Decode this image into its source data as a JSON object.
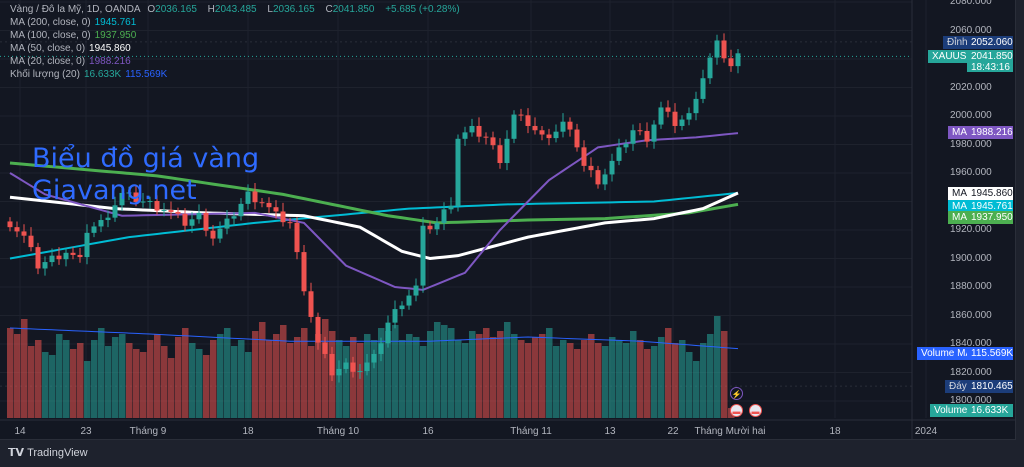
{
  "legend": {
    "symbol": "Vàng / Đô la Mỹ, 1D, OANDA",
    "o_label": "O",
    "o": "2036.165",
    "h_label": "H",
    "h": "2043.485",
    "l_label": "L",
    "l": "2036.165",
    "c_label": "C",
    "c": "2041.850",
    "change": "+5.685 (+0.28%)",
    "ma200_label": "MA (200, close, 0)",
    "ma200": "1945.761",
    "ma100_label": "MA (100, close, 0)",
    "ma100": "1937.950",
    "ma50_label": "MA (50, close, 0)",
    "ma50": "1945.860",
    "ma20_label": "MA (20, close, 0)",
    "ma20": "1988.216",
    "vol_label": "Khối lượng (20)",
    "vol": "16.633K",
    "vol_ma": "115.569K"
  },
  "watermark": [
    "Biểu đồ giá vàng",
    "Giavang.net"
  ],
  "price_scale": [
    "2080.000",
    "2060.000",
    "2020.000",
    "2000.000",
    "1980.000",
    "1960.000",
    "1920.000",
    "1900.000",
    "1880.000",
    "1860.000",
    "1840.000",
    "1820.000",
    "1800.000"
  ],
  "tags": {
    "high_label": "Đỉnh",
    "high": "2052.060",
    "symbol": "XAUUSD",
    "last": "2041.850",
    "countdown": "18:43:16",
    "ma_label": "MA",
    "ma20": "1988.216",
    "ma50": "1945.860",
    "ma200": "1945.761",
    "ma100": "1937.950",
    "volma_label": "Volume MA",
    "volma": "115.569K",
    "low_label": "Đáy",
    "low": "1810.465",
    "vol_label": "Volume",
    "vol": "16.633K"
  },
  "time_axis": [
    "14",
    "23",
    "Tháng 9",
    "18",
    "Tháng 10",
    "16",
    "Tháng 11",
    "13",
    "22",
    "Tháng Mười hai",
    "18",
    "2024"
  ],
  "footer": "TradingView",
  "colors": {
    "up": "#26a69a",
    "down": "#ef5350",
    "ma20": "#7e57c2",
    "ma50": "#ffffff",
    "ma100": "#4caf50",
    "ma200": "#00bcd4",
    "volma": "#2962ff"
  },
  "chart_data": {
    "type": "candlestick",
    "ylim": [
      1795,
      2082
    ],
    "close_path": [
      [
        0,
        1925
      ],
      [
        2,
        1915
      ],
      [
        4,
        1895
      ],
      [
        6,
        1900
      ],
      [
        8,
        1905
      ],
      [
        10,
        1898
      ],
      [
        11,
        1920
      ],
      [
        13,
        1925
      ],
      [
        16,
        1945
      ],
      [
        19,
        1940
      ],
      [
        22,
        1935
      ],
      [
        25,
        1925
      ],
      [
        27,
        1930
      ],
      [
        29,
        1915
      ],
      [
        31,
        1925
      ],
      [
        34,
        1945
      ],
      [
        36,
        1940
      ],
      [
        38,
        1930
      ],
      [
        40,
        1925
      ],
      [
        42,
        1880
      ],
      [
        44,
        1840
      ],
      [
        46,
        1820
      ],
      [
        48,
        1825
      ],
      [
        50,
        1822
      ],
      [
        52,
        1830
      ],
      [
        54,
        1855
      ],
      [
        56,
        1870
      ],
      [
        58,
        1880
      ],
      [
        59,
        1920
      ],
      [
        61,
        1925
      ],
      [
        63,
        1940
      ],
      [
        64,
        1985
      ],
      [
        66,
        1990
      ],
      [
        68,
        1985
      ],
      [
        70,
        1970
      ],
      [
        72,
        2000
      ],
      [
        74,
        1995
      ],
      [
        76,
        1985
      ],
      [
        78,
        1990
      ],
      [
        79,
        1995
      ],
      [
        81,
        1980
      ],
      [
        82,
        1965
      ],
      [
        84,
        1955
      ],
      [
        85,
        1960
      ],
      [
        87,
        1975
      ],
      [
        89,
        1990
      ],
      [
        91,
        1985
      ],
      [
        93,
        2005
      ],
      [
        95,
        1995
      ],
      [
        97,
        2000
      ],
      [
        98,
        2015
      ],
      [
        100,
        2040
      ],
      [
        101,
        2050
      ],
      [
        103,
        2035
      ],
      [
        104,
        2042
      ]
    ],
    "ma20": [
      [
        0,
        1960
      ],
      [
        5,
        1945
      ],
      [
        16,
        1930
      ],
      [
        35,
        1932
      ],
      [
        42,
        1925
      ],
      [
        48,
        1895
      ],
      [
        55,
        1880
      ],
      [
        59,
        1878
      ],
      [
        65,
        1890
      ],
      [
        70,
        1920
      ],
      [
        77,
        1955
      ],
      [
        84,
        1978
      ],
      [
        91,
        1983
      ],
      [
        98,
        1985
      ],
      [
        104,
        1988
      ]
    ],
    "ma50": [
      [
        0,
        1943
      ],
      [
        15,
        1935
      ],
      [
        28,
        1932
      ],
      [
        42,
        1930
      ],
      [
        50,
        1922
      ],
      [
        56,
        1905
      ],
      [
        60,
        1900
      ],
      [
        64,
        1902
      ],
      [
        74,
        1915
      ],
      [
        85,
        1925
      ],
      [
        92,
        1928
      ],
      [
        99,
        1935
      ],
      [
        104,
        1946
      ]
    ],
    "ma100": [
      [
        0,
        1967
      ],
      [
        21,
        1958
      ],
      [
        39,
        1945
      ],
      [
        54,
        1930
      ],
      [
        61,
        1925
      ],
      [
        74,
        1927
      ],
      [
        85,
        1928
      ],
      [
        97,
        1932
      ],
      [
        104,
        1938
      ]
    ],
    "ma200": [
      [
        0,
        1900
      ],
      [
        17,
        1915
      ],
      [
        35,
        1925
      ],
      [
        57,
        1935
      ],
      [
        71,
        1938
      ],
      [
        92,
        1940
      ],
      [
        104,
        1946
      ]
    ],
    "volumes_k": [
      150,
      140,
      165,
      120,
      130,
      110,
      105,
      140,
      130,
      115,
      125,
      95,
      130,
      150,
      120,
      135,
      140,
      125,
      115,
      110,
      130,
      140,
      120,
      100,
      135,
      150,
      125,
      115,
      105,
      130,
      140,
      150,
      120,
      130,
      110,
      145,
      160,
      130,
      140,
      155,
      125,
      135,
      150,
      120,
      140,
      165,
      145,
      130,
      120,
      135,
      125,
      140,
      130,
      150,
      145,
      155,
      130,
      140,
      135,
      120,
      145,
      160,
      155,
      150,
      130,
      125,
      145,
      140,
      150,
      135,
      145,
      160,
      140,
      130,
      125,
      135,
      140,
      150,
      120,
      130,
      125,
      115,
      130,
      140,
      125,
      120,
      135,
      130,
      125,
      145,
      130,
      115,
      120,
      135,
      150,
      125,
      130,
      110,
      95,
      125,
      140,
      170,
      145,
      16.6
    ],
    "volume_ma_k": [
      [
        0,
        150
      ],
      [
        20,
        140
      ],
      [
        40,
        128
      ],
      [
        60,
        128
      ],
      [
        74,
        135
      ],
      [
        90,
        128
      ],
      [
        104,
        115.6
      ]
    ]
  }
}
